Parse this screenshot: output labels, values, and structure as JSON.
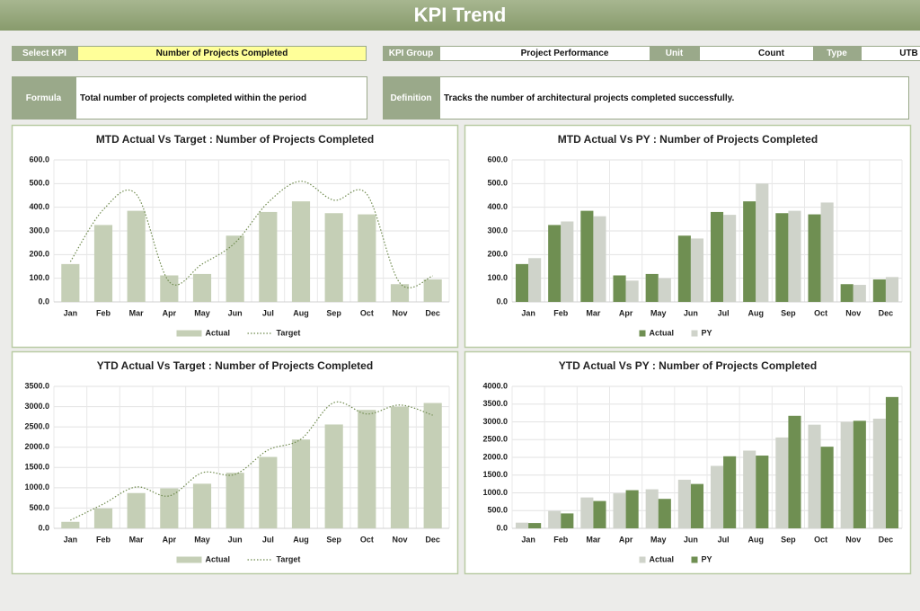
{
  "header": {
    "title": "KPI Trend"
  },
  "fields": [
    {
      "label": "Select KPI",
      "value": "Number of Projects Completed"
    },
    {
      "label": "KPI Group",
      "value": "Project Performance"
    },
    {
      "label": "Unit",
      "value": "Count"
    },
    {
      "label": "Type",
      "value": "UTB"
    }
  ],
  "descriptions": [
    {
      "label": "Formula",
      "text": "Total number of projects completed within the period"
    },
    {
      "label": "Definition",
      "text": "Tracks the number of architectural projects completed successfully."
    }
  ],
  "chart_data": [
    {
      "type": "combo",
      "title": "MTD Actual Vs Target : Number of Projects Completed",
      "categories": [
        "Jan",
        "Feb",
        "Mar",
        "Apr",
        "May",
        "Jun",
        "Jul",
        "Aug",
        "Sep",
        "Oct",
        "Nov",
        "Dec"
      ],
      "series": [
        {
          "name": "Actual",
          "type": "bar",
          "color": "#c5cfb6",
          "values": [
            160,
            325,
            385,
            112,
            118,
            280,
            380,
            425,
            375,
            370,
            75,
            95
          ]
        },
        {
          "name": "Target",
          "type": "line",
          "color": "#6f8a4e",
          "values": [
            170,
            390,
            455,
            85,
            160,
            250,
            420,
            510,
            430,
            455,
            80,
            110
          ]
        }
      ],
      "ylim": [
        0,
        600
      ],
      "yticks": [
        {
          "value": 0,
          "label": "0.0"
        },
        {
          "value": 100,
          "label": "100.0"
        },
        {
          "value": 200,
          "label": "200.0"
        },
        {
          "value": 300,
          "label": "300.0"
        },
        {
          "value": 400,
          "label": "400.0"
        },
        {
          "value": 500,
          "label": "500.0"
        },
        {
          "value": 600,
          "label": "600.0"
        }
      ],
      "grid": true
    },
    {
      "type": "combo",
      "title": "MTD Actual Vs PY : Number of Projects Completed",
      "categories": [
        "Jan",
        "Feb",
        "Mar",
        "Apr",
        "May",
        "Jun",
        "Jul",
        "Aug",
        "Sep",
        "Oct",
        "Nov",
        "Dec"
      ],
      "series": [
        {
          "name": "Actual",
          "type": "bar",
          "color": "#6f8f52",
          "values": [
            160,
            325,
            385,
            112,
            118,
            280,
            380,
            425,
            375,
            370,
            75,
            95
          ]
        },
        {
          "name": "PY",
          "type": "bar",
          "color": "#cfd3ca",
          "values": [
            185,
            340,
            362,
            90,
            100,
            268,
            368,
            500,
            385,
            420,
            72,
            105
          ]
        }
      ],
      "ylim": [
        0,
        600
      ],
      "yticks": [
        {
          "value": 0,
          "label": "0.0"
        },
        {
          "value": 100,
          "label": "100.0"
        },
        {
          "value": 200,
          "label": "200.0"
        },
        {
          "value": 300,
          "label": "300.0"
        },
        {
          "value": 400,
          "label": "400.0"
        },
        {
          "value": 500,
          "label": "500.0"
        },
        {
          "value": 600,
          "label": "600.0"
        }
      ],
      "grid": true
    },
    {
      "type": "combo",
      "title": "YTD Actual Vs Target : Number of Projects Completed",
      "categories": [
        "Jan",
        "Feb",
        "Mar",
        "Apr",
        "May",
        "Jun",
        "Jul",
        "Aug",
        "Sep",
        "Oct",
        "Nov",
        "Dec"
      ],
      "series": [
        {
          "name": "Actual",
          "type": "bar",
          "color": "#c5cfb6",
          "values": [
            160,
            490,
            870,
            985,
            1100,
            1370,
            1760,
            2190,
            2560,
            2920,
            3000,
            3090
          ]
        },
        {
          "name": "Target",
          "type": "line",
          "color": "#6f8a4e",
          "values": [
            200,
            600,
            1020,
            800,
            1370,
            1330,
            1930,
            2200,
            3100,
            2820,
            3040,
            2790
          ]
        }
      ],
      "ylim": [
        0,
        3500
      ],
      "yticks": [
        {
          "value": 0,
          "label": "0.0"
        },
        {
          "value": 500,
          "label": "500.0"
        },
        {
          "value": 1000,
          "label": "1000.0"
        },
        {
          "value": 1500,
          "label": "1500.0"
        },
        {
          "value": 2000,
          "label": "2000.0"
        },
        {
          "value": 2500,
          "label": "2500.0"
        },
        {
          "value": 3000,
          "label": "3000.0"
        },
        {
          "value": 3500,
          "label": "3500.0"
        }
      ],
      "grid": true
    },
    {
      "type": "combo",
      "title": "YTD Actual Vs PY : Number of Projects Completed",
      "categories": [
        "Jan",
        "Feb",
        "Mar",
        "Apr",
        "May",
        "Jun",
        "Jul",
        "Aug",
        "Sep",
        "Oct",
        "Nov",
        "Dec"
      ],
      "series": [
        {
          "name": "Actual",
          "type": "bar",
          "color": "#cfd3ca",
          "values": [
            160,
            490,
            870,
            985,
            1100,
            1370,
            1760,
            2190,
            2560,
            2920,
            3000,
            3090
          ]
        },
        {
          "name": "PY",
          "type": "bar",
          "color": "#6f8f52",
          "values": [
            150,
            420,
            770,
            1075,
            830,
            1250,
            2030,
            2050,
            3170,
            2300,
            3030,
            3700
          ]
        }
      ],
      "ylim": [
        0,
        4000
      ],
      "yticks": [
        {
          "value": 0,
          "label": "0.0"
        },
        {
          "value": 500,
          "label": "500.0"
        },
        {
          "value": 1000,
          "label": "1000.0"
        },
        {
          "value": 1500,
          "label": "1500.0"
        },
        {
          "value": 2000,
          "label": "2000.0"
        },
        {
          "value": 2500,
          "label": "2500.0"
        },
        {
          "value": 3000,
          "label": "3000.0"
        },
        {
          "value": 3500,
          "label": "3500.0"
        },
        {
          "value": 4000,
          "label": "4000.0"
        }
      ],
      "grid": true
    }
  ]
}
